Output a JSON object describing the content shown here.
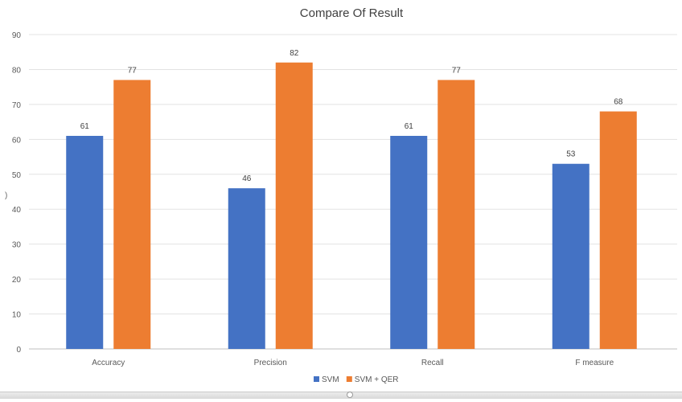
{
  "chart_data": {
    "type": "bar",
    "title": "Compare Of Result",
    "categories": [
      "Accuracy",
      "Precision",
      "Recall",
      "F measure"
    ],
    "series": [
      {
        "name": "SVM",
        "values": [
          61,
          46,
          61,
          53
        ],
        "color": "#4472C4"
      },
      {
        "name": "SVM + QER",
        "values": [
          77,
          82,
          77,
          68
        ],
        "color": "#ED7D31"
      }
    ],
    "ylim": [
      0,
      90
    ],
    "yticks": [
      0,
      10,
      20,
      30,
      40,
      50,
      60,
      70,
      80,
      90
    ],
    "grid": true,
    "legend": "bottom",
    "data_labels": true
  }
}
